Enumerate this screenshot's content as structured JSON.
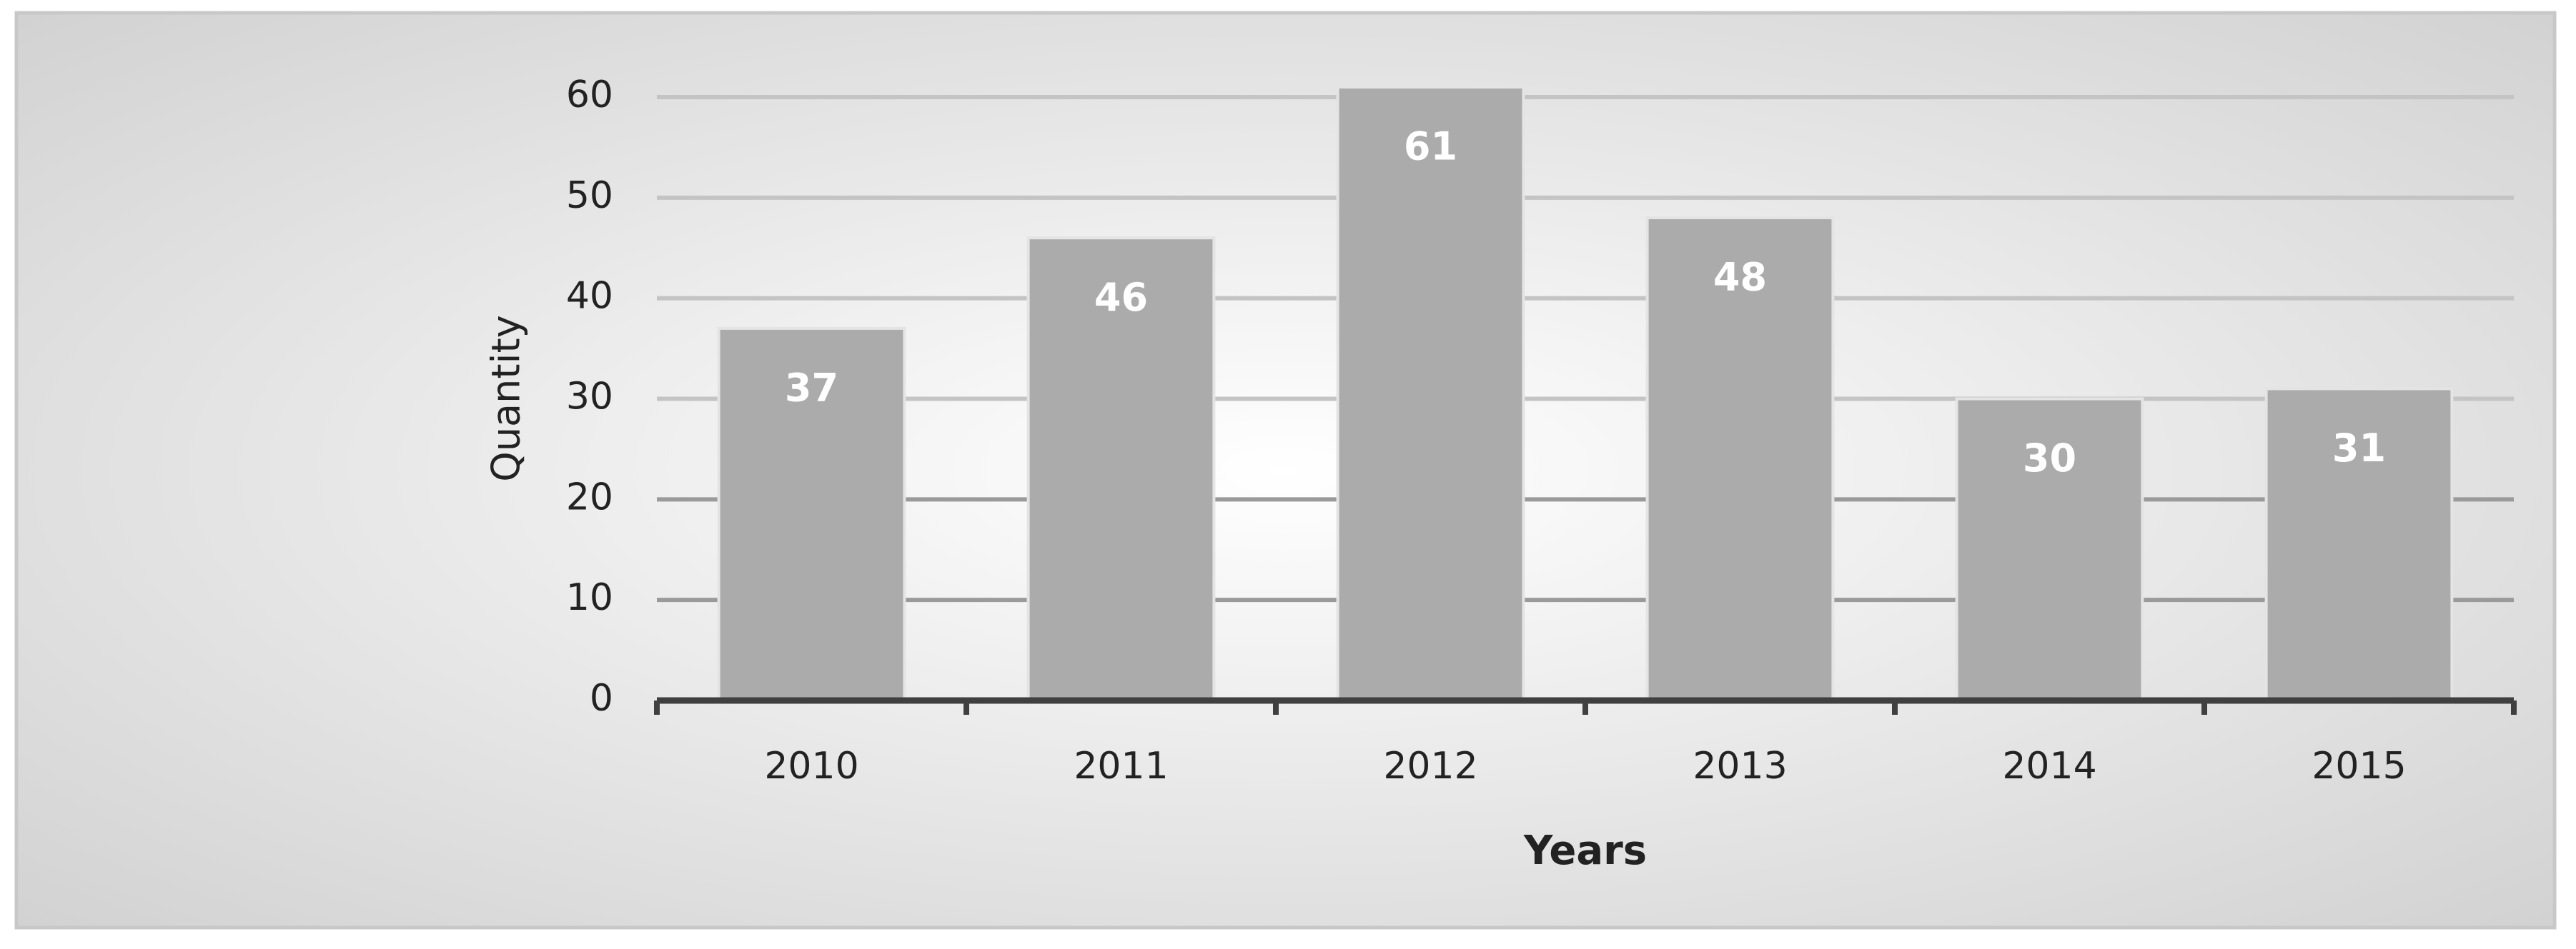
{
  "chart_data": {
    "type": "bar",
    "x_label": "Years",
    "y_label": "Quantity",
    "categories": [
      "2010",
      "2011",
      "2012",
      "2013",
      "2014",
      "2015"
    ],
    "values": [
      37,
      46,
      61,
      48,
      30,
      31
    ],
    "color": "#ababab",
    "ylim": [
      0,
      60
    ],
    "yticks": [
      0,
      10,
      20,
      30,
      40,
      50,
      60
    ],
    "grid": true
  }
}
